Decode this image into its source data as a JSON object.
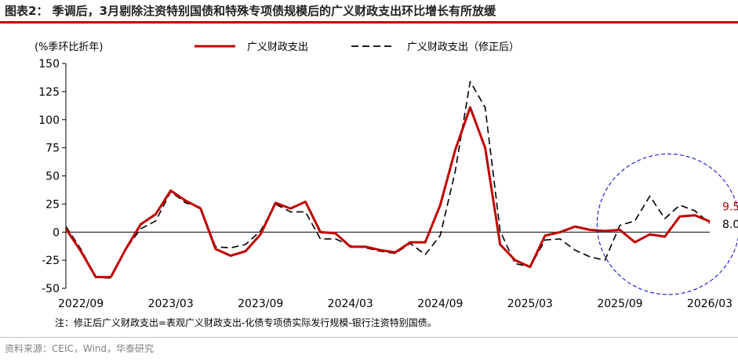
{
  "title": "图表2： 季调后，3月剔除注资特别国债和特殊专项债规模后的广义财政支出环比增长有所放缓",
  "note": "注：修正后广义财政支出=表观广义财政支出-化债专项债实际发行规模-银行注资特别国债。",
  "source": "资料来源：CEIC，Wind，华泰研究",
  "chart_data": {
    "type": "line",
    "ylabel": "(%季环比折年)",
    "ylim": [
      -50,
      150
    ],
    "yticks": [
      150,
      125,
      100,
      75,
      50,
      25,
      0,
      -25,
      -50
    ],
    "xticks": [
      "2022/09",
      "2023/03",
      "2023/09",
      "2024/03",
      "2024/09",
      "2025/03",
      "2025/09",
      "2026/03"
    ],
    "x": [
      "2022/08",
      "2022/09",
      "2022/10",
      "2022/11",
      "2022/12",
      "2023/01",
      "2023/02",
      "2023/03",
      "2023/04",
      "2023/05",
      "2023/06",
      "2023/07",
      "2023/08",
      "2023/09",
      "2023/10",
      "2023/11",
      "2023/12",
      "2024/01",
      "2024/02",
      "2024/03",
      "2024/04",
      "2024/05",
      "2024/06",
      "2024/07",
      "2024/08",
      "2024/09",
      "2024/10",
      "2024/11",
      "2024/12",
      "2025/01",
      "2025/02",
      "2025/03",
      "2025/04",
      "2025/05",
      "2025/06",
      "2025/07",
      "2025/08",
      "2025/09",
      "2025/10",
      "2025/11",
      "2025/12",
      "2026/01",
      "2026/02",
      "2026/03"
    ],
    "series": [
      {
        "name": "广义财政支出",
        "color": "#c00000",
        "style": "solid",
        "values": [
          3,
          -17,
          -40,
          -40,
          -15,
          7,
          16,
          37,
          28,
          21,
          -15,
          -21,
          -17,
          -2,
          26,
          21,
          27,
          0,
          -1,
          -13,
          -13,
          -16,
          -18,
          -9,
          -9,
          24,
          73,
          111,
          75,
          -11,
          -25,
          -31,
          -3,
          0,
          5,
          2,
          1,
          2,
          -9,
          -2,
          -4,
          14,
          15,
          9.5
        ]
      },
      {
        "name": "广义财政支出（修正后）",
        "color": "#000000",
        "style": "dashed",
        "values": [
          5,
          -15,
          -40,
          -41,
          -15,
          3,
          10,
          36,
          26,
          22,
          -13,
          -14,
          -11,
          1,
          25,
          18,
          18,
          -6,
          -6,
          -12,
          -14,
          -17,
          -19,
          -10,
          -20,
          -3,
          54,
          134,
          111,
          1,
          -28,
          -31,
          -7,
          -6,
          -16,
          -22,
          -25,
          6,
          10,
          32,
          12,
          24,
          19,
          8.0
        ]
      }
    ],
    "end_labels": [
      {
        "text": "9.5",
        "color": "#c00000"
      },
      {
        "text": "8.0",
        "color": "#000000"
      }
    ],
    "highlight_ellipse": {
      "color": "#0000cc",
      "style": "dashed"
    },
    "legend_placement": "top"
  }
}
